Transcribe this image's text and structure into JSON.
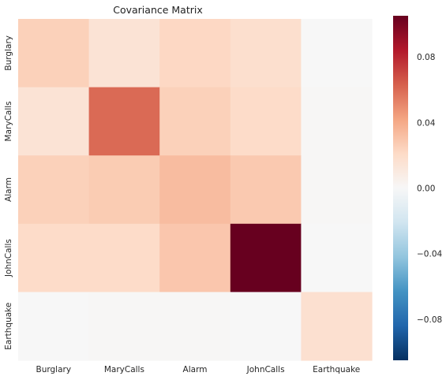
{
  "chart_data": {
    "type": "heatmap",
    "title": "Covariance Matrix",
    "x_categories": [
      "Burglary",
      "MaryCalls",
      "Alarm",
      "JohnCalls",
      "Earthquake"
    ],
    "y_categories": [
      "Burglary",
      "MaryCalls",
      "Alarm",
      "JohnCalls",
      "Earthquake"
    ],
    "values": [
      [
        0.025,
        0.015,
        0.022,
        0.018,
        0.0
      ],
      [
        0.015,
        0.06,
        0.025,
        0.02,
        0.001
      ],
      [
        0.025,
        0.027,
        0.033,
        0.028,
        0.001
      ],
      [
        0.02,
        0.02,
        0.029,
        0.105,
        0.0
      ],
      [
        0.0,
        0.001,
        0.001,
        0.0,
        0.017
      ]
    ],
    "colorbar": {
      "colormap": "RdBu_r",
      "vmin": -0.105,
      "vmax": 0.105,
      "ticks": [
        -0.08,
        -0.04,
        0.0,
        0.04,
        0.08
      ],
      "tick_labels": [
        "−0.08",
        "−0.04",
        "0.00",
        "0.04",
        "0.08"
      ]
    }
  }
}
